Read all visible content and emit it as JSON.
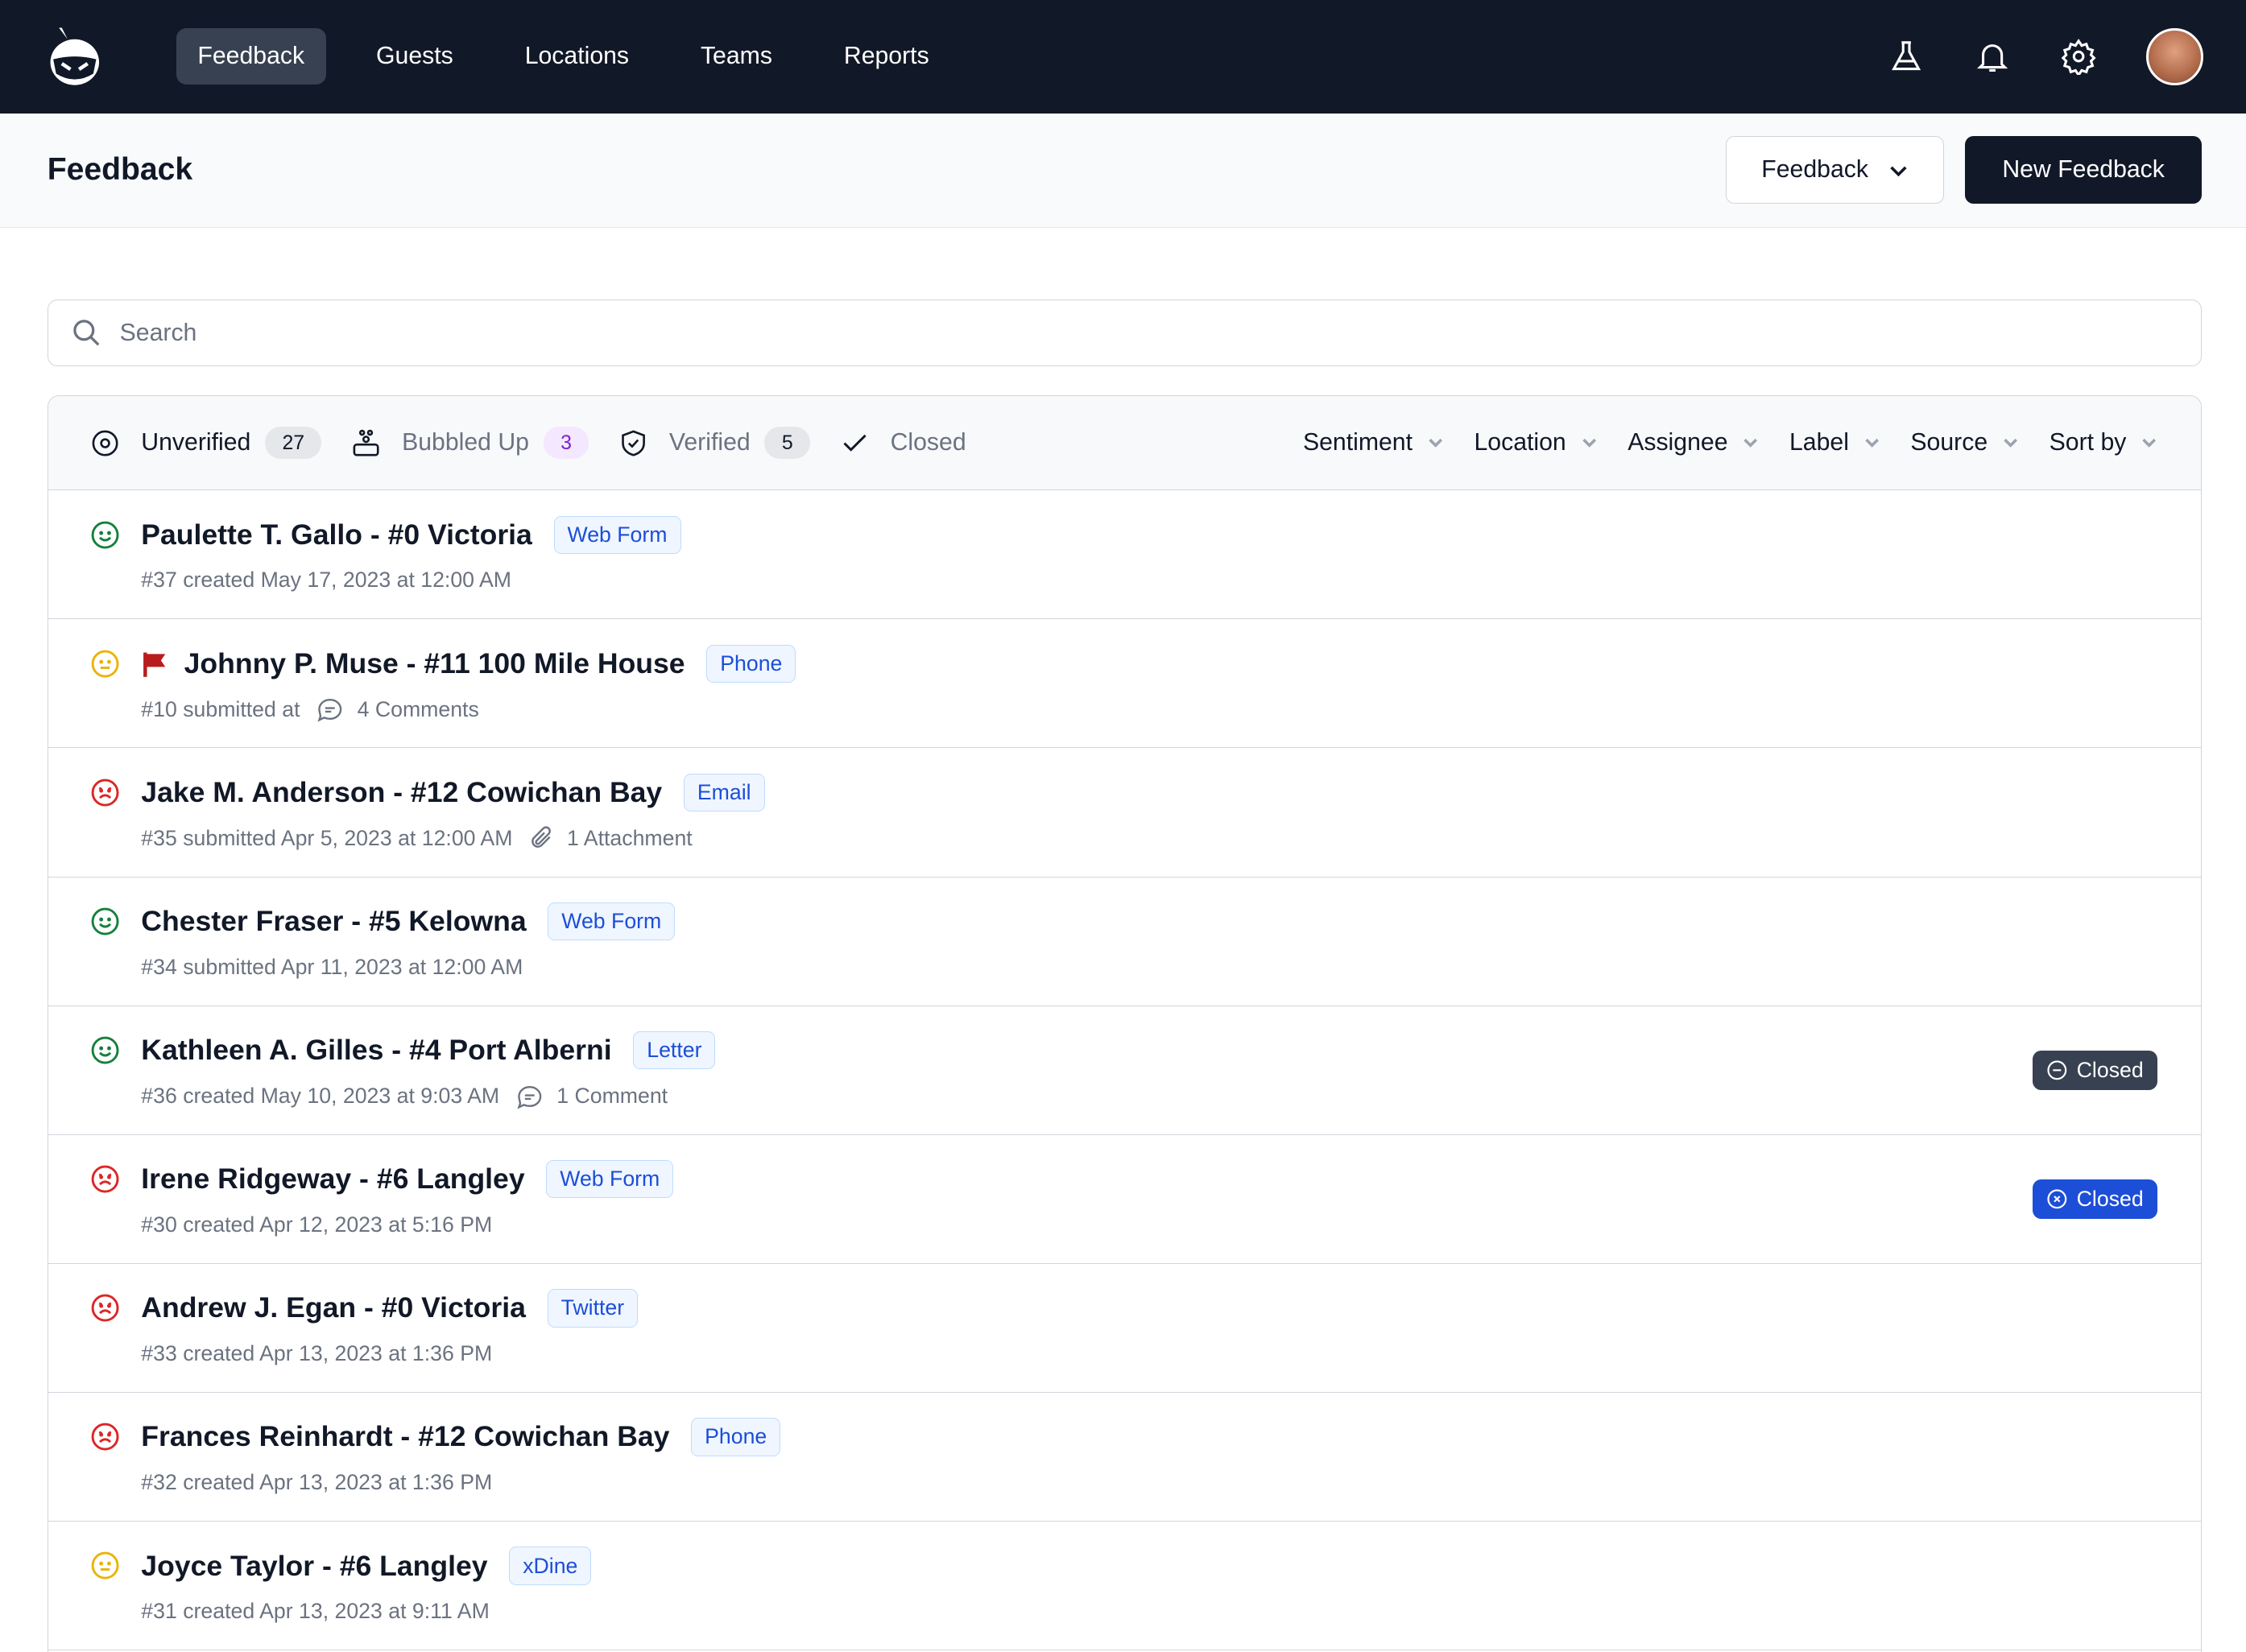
{
  "nav": {
    "items": [
      "Feedback",
      "Guests",
      "Locations",
      "Teams",
      "Reports"
    ],
    "active": 0
  },
  "header": {
    "title": "Feedback",
    "dropdown_label": "Feedback",
    "new_button": "New Feedback"
  },
  "search": {
    "placeholder": "Search",
    "value": ""
  },
  "tabs": [
    {
      "label": "Unverified",
      "count": "27",
      "icon": "target-icon"
    },
    {
      "label": "Bubbled Up",
      "count": "3",
      "icon": "bubbles-icon"
    },
    {
      "label": "Verified",
      "count": "5",
      "icon": "shield-check-icon"
    },
    {
      "label": "Closed",
      "icon": "check-icon"
    }
  ],
  "filters": [
    "Sentiment",
    "Location",
    "Assignee",
    "Label",
    "Source",
    "Sort by"
  ],
  "colors": {
    "positive": "#15803d",
    "neutral": "#eab308",
    "negative": "#dc2626",
    "flag": "#b91c1c",
    "closed_dark": "#374151",
    "closed_blue": "#1d4ed8"
  },
  "rows": [
    {
      "sentiment": "positive",
      "title": "Paulette T. Gallo - #0 Victoria",
      "tag": "Web Form",
      "meta": "#37 created May 17, 2023 at 12:00 AM"
    },
    {
      "sentiment": "neutral",
      "flagged": true,
      "title": "Johnny P. Muse - #11 100 Mile House",
      "tag": "Phone",
      "meta": "#10 submitted at",
      "extra": "4 Comments",
      "extra_icon": "comment-icon"
    },
    {
      "sentiment": "negative",
      "title": "Jake M. Anderson - #12 Cowichan Bay",
      "tag": "Email",
      "meta": "#35 submitted Apr 5, 2023 at 12:00 AM",
      "extra": "1 Attachment",
      "extra_icon": "paperclip-icon"
    },
    {
      "sentiment": "positive",
      "title": "Chester Fraser - #5 Kelowna",
      "tag": "Web Form",
      "meta": "#34 submitted Apr 11, 2023 at 12:00 AM"
    },
    {
      "sentiment": "positive",
      "title": "Kathleen A. Gilles - #4 Port Alberni",
      "tag": "Letter",
      "meta": "#36 created May 10, 2023 at 9:03 AM",
      "extra": "1 Comment",
      "extra_icon": "comment-icon",
      "status": "Closed",
      "status_style": "dark"
    },
    {
      "sentiment": "negative",
      "title": "Irene Ridgeway - #6 Langley",
      "tag": "Web Form",
      "meta": "#30 created Apr 12, 2023 at 5:16 PM",
      "status": "Closed",
      "status_style": "blue"
    },
    {
      "sentiment": "negative",
      "title": "Andrew J. Egan - #0 Victoria",
      "tag": "Twitter",
      "meta": "#33 created Apr 13, 2023 at 1:36 PM"
    },
    {
      "sentiment": "negative",
      "title": "Frances Reinhardt - #12 Cowichan Bay",
      "tag": "Phone",
      "meta": "#32 created Apr 13, 2023 at 1:36 PM"
    },
    {
      "sentiment": "neutral",
      "title": "Joyce Taylor - #6 Langley",
      "tag": "xDine",
      "meta": "#31 created Apr 13, 2023 at 9:11 AM"
    }
  ]
}
